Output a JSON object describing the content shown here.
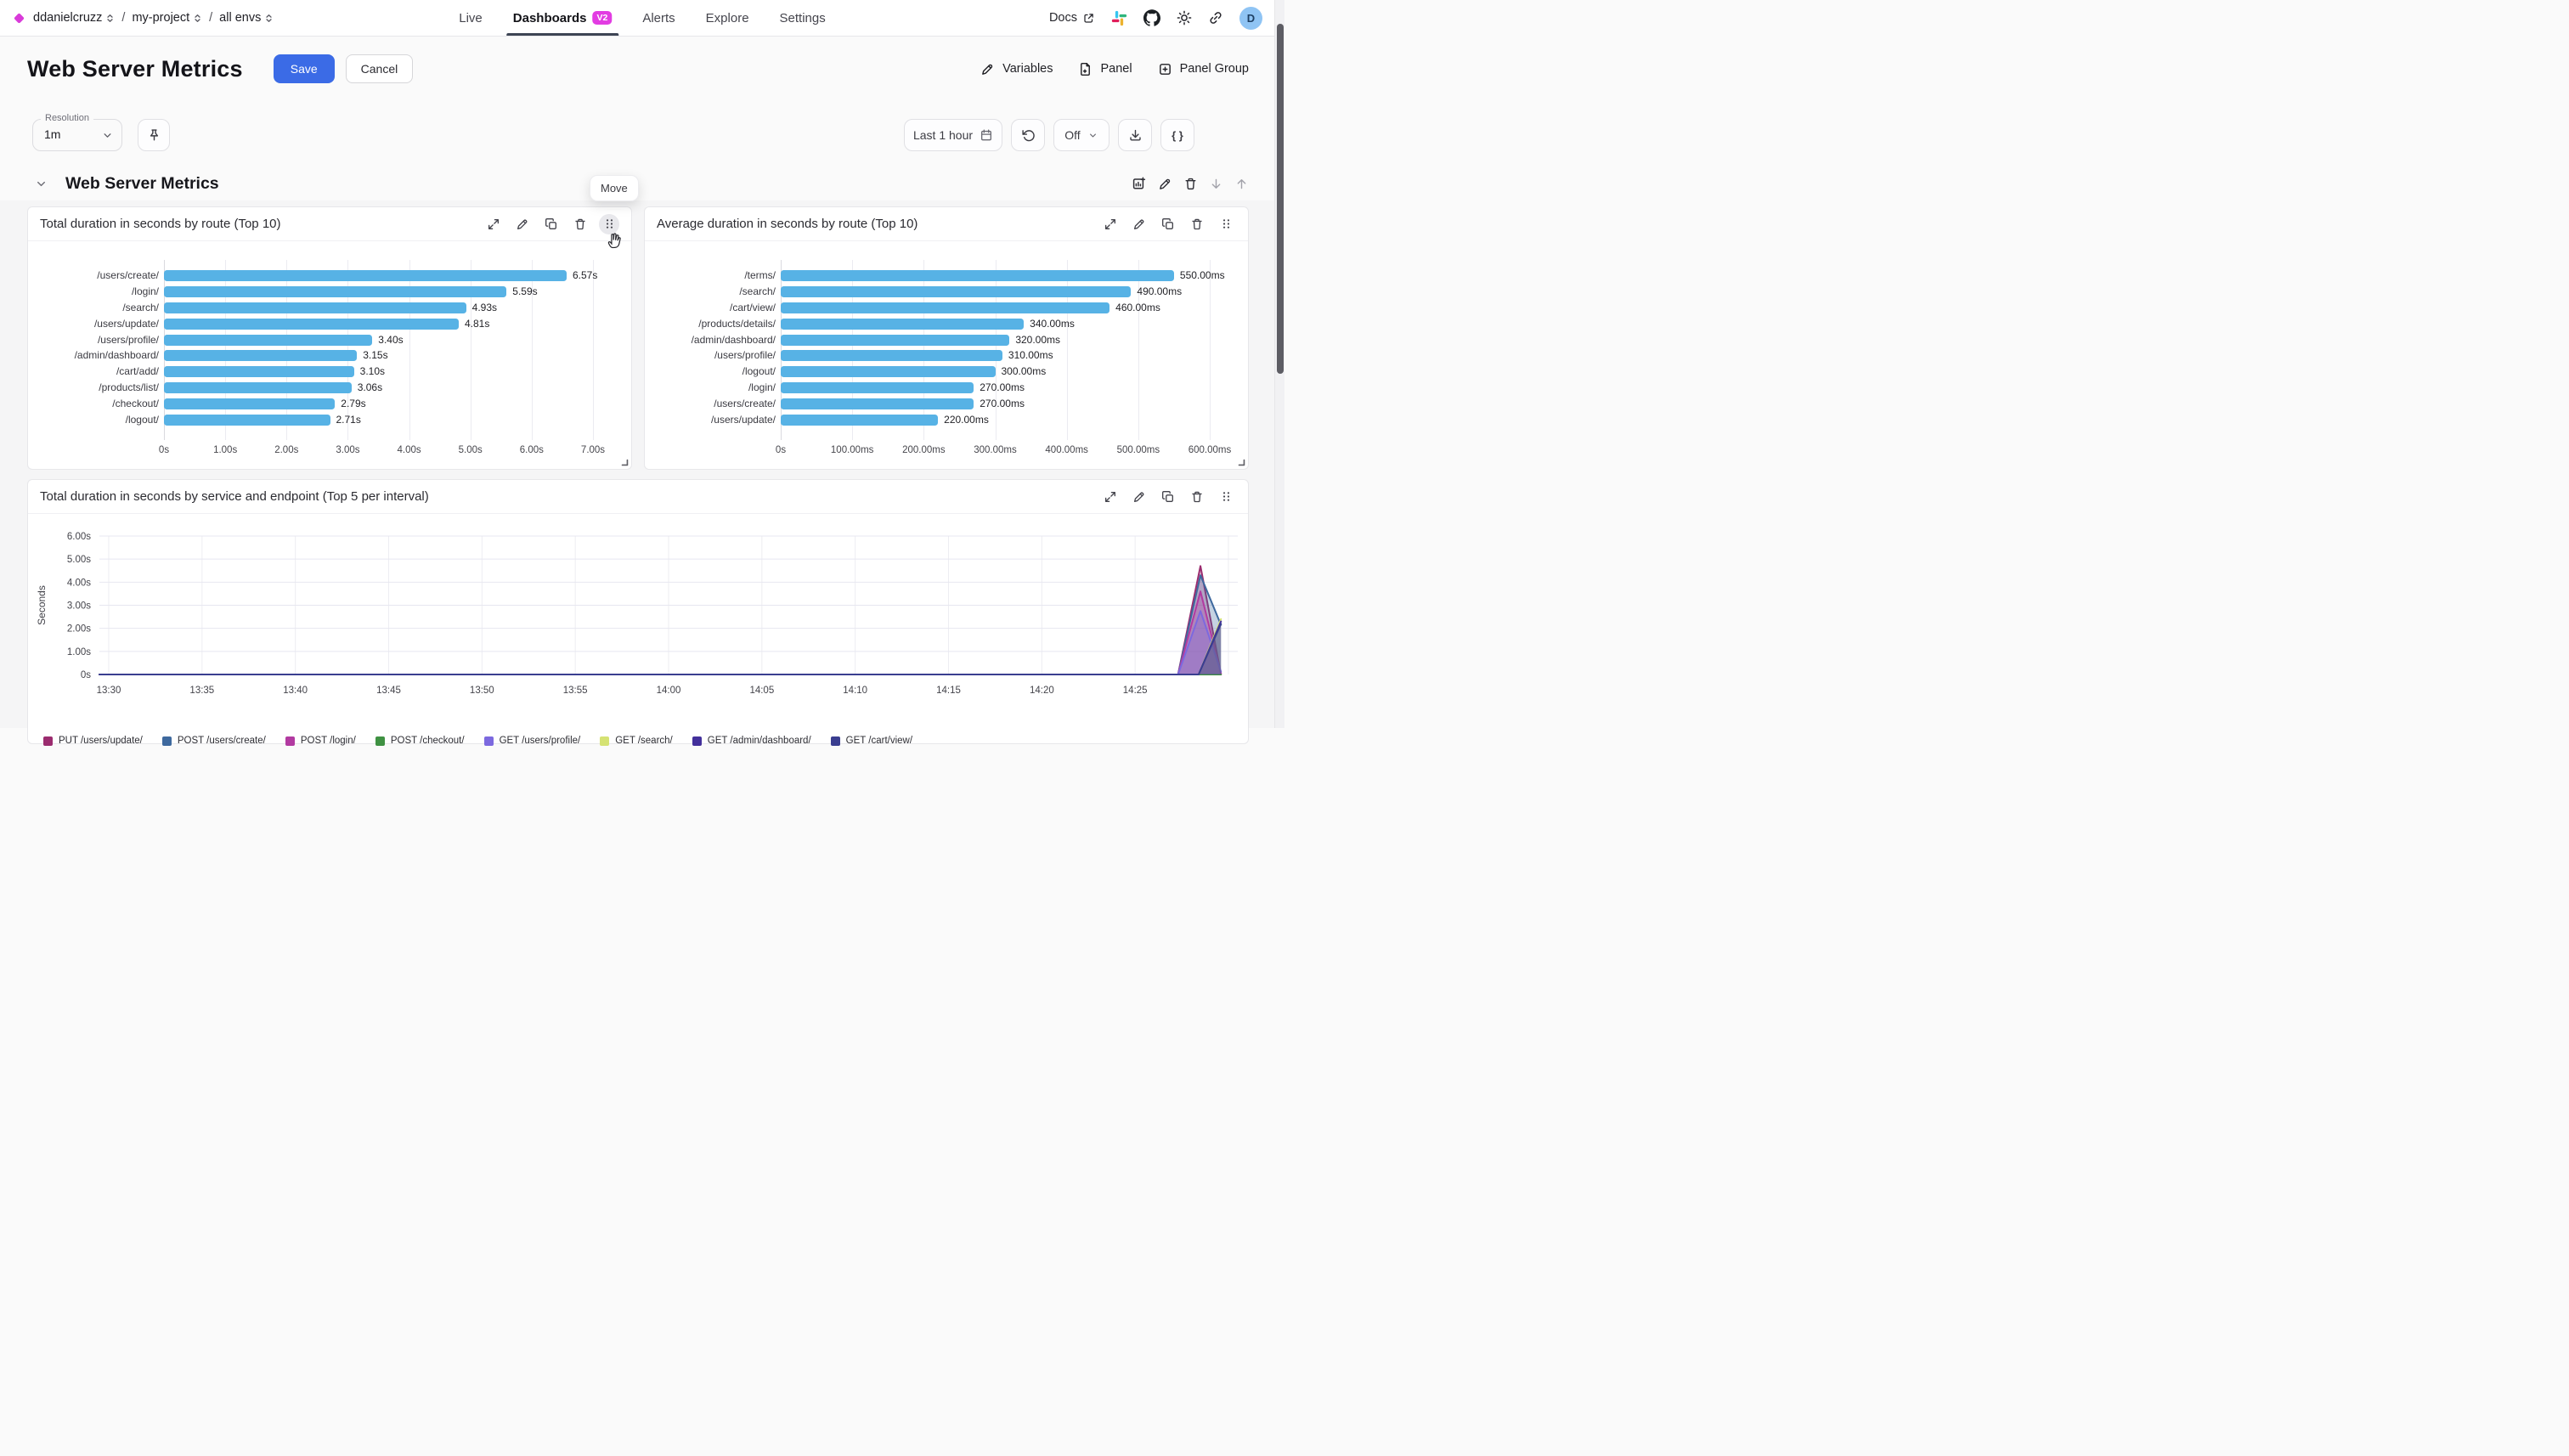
{
  "colors": {
    "accent_blue": "#3B6BE6",
    "bar_blue": "#57B2E5",
    "badge_magenta": "#E23CE2",
    "logo_magenta": "#D93BD9",
    "avatar_bg": "#8FC4F4",
    "nav_underline": "#3D4454"
  },
  "topbar": {
    "logo_icon": "diamond-logo-icon",
    "breadcrumb": [
      {
        "label": "ddanielcruzz",
        "icon": "selector-icon"
      },
      {
        "label": "my-project",
        "icon": "selector-icon"
      },
      {
        "label": "all envs",
        "icon": "selector-icon"
      }
    ],
    "separator": "/",
    "nav": [
      {
        "label": "Live",
        "active": false
      },
      {
        "label": "Dashboards",
        "active": true,
        "badge": "V2"
      },
      {
        "label": "Alerts",
        "active": false
      },
      {
        "label": "Explore",
        "active": false
      },
      {
        "label": "Settings",
        "active": false
      }
    ],
    "docs_label": "Docs",
    "icons": [
      "external-link-icon",
      "slack-icon",
      "github-icon",
      "brightness-icon",
      "link-icon"
    ],
    "avatar_initial": "D"
  },
  "header": {
    "title": "Web Server Metrics",
    "save_label": "Save",
    "cancel_label": "Cancel",
    "actions": [
      {
        "icon": "pencil-icon",
        "label": "Variables"
      },
      {
        "icon": "file-plus-icon",
        "label": "Panel"
      },
      {
        "icon": "square-plus-icon",
        "label": "Panel Group"
      }
    ]
  },
  "toolbar": {
    "resolution_label": "Resolution",
    "resolution_value": "1m",
    "pin_icon": "pin-icon",
    "time_range": "Last 1 hour",
    "calendar_icon": "calendar-icon",
    "refresh_icon": "rotate-ccw-icon",
    "auto_refresh_value": "Off",
    "download_icon": "download-icon",
    "braces_label": "{ }"
  },
  "section": {
    "title": "Web Server Metrics",
    "collapse_icon": "chevron-down-icon",
    "tooltip": "Move",
    "action_icons": [
      "add-panel-icon",
      "pencil-icon",
      "trash-icon",
      "arrow-down-icon",
      "arrow-up-icon"
    ]
  },
  "panel_action_icons": [
    "expand-icon",
    "pencil-icon",
    "copy-icon",
    "trash-icon",
    "drag-handle-icon"
  ],
  "chart_data": [
    {
      "type": "bar",
      "orientation": "horizontal",
      "title": "Total duration in seconds by route (Top 10)",
      "categories": [
        "/users/create/",
        "/login/",
        "/search/",
        "/users/update/",
        "/users/profile/",
        "/admin/dashboard/",
        "/cart/add/",
        "/products/list/",
        "/checkout/",
        "/logout/"
      ],
      "values": [
        6.57,
        5.59,
        4.93,
        4.81,
        3.4,
        3.15,
        3.1,
        3.06,
        2.79,
        2.71
      ],
      "value_labels": [
        "6.57s",
        "5.59s",
        "4.93s",
        "4.81s",
        "3.40s",
        "3.15s",
        "3.10s",
        "3.06s",
        "2.79s",
        "2.71s"
      ],
      "x_tick_values": [
        0,
        1,
        2,
        3,
        4,
        5,
        6,
        7
      ],
      "x_tick_labels": [
        "0s",
        "1.00s",
        "2.00s",
        "3.00s",
        "4.00s",
        "5.00s",
        "6.00s",
        "7.00s"
      ],
      "xlim": [
        0,
        7
      ],
      "bar_color": "#57B2E5",
      "grid": true
    },
    {
      "type": "bar",
      "orientation": "horizontal",
      "title": "Average duration in seconds by route (Top 10)",
      "categories": [
        "/terms/",
        "/search/",
        "/cart/view/",
        "/products/details/",
        "/admin/dashboard/",
        "/users/profile/",
        "/logout/",
        "/login/",
        "/users/create/",
        "/users/update/"
      ],
      "values": [
        550,
        490,
        460,
        340,
        320,
        310,
        300,
        270,
        270,
        220
      ],
      "value_labels": [
        "550.00ms",
        "490.00ms",
        "460.00ms",
        "340.00ms",
        "320.00ms",
        "310.00ms",
        "300.00ms",
        "270.00ms",
        "270.00ms",
        "220.00ms"
      ],
      "x_tick_values": [
        0,
        100,
        200,
        300,
        400,
        500,
        600
      ],
      "x_tick_labels": [
        "0s",
        "100.00ms",
        "200.00ms",
        "300.00ms",
        "400.00ms",
        "500.00ms",
        "600.00ms"
      ],
      "xlim": [
        0,
        600
      ],
      "bar_color": "#57B2E5",
      "grid": true
    },
    {
      "type": "area",
      "title": "Total duration in seconds by service and endpoint (Top 5 per interval)",
      "ylabel": "Seconds",
      "ylim": [
        0,
        6
      ],
      "y_tick_values": [
        0,
        1,
        2,
        3,
        4,
        5,
        6
      ],
      "y_tick_labels": [
        "0s",
        "1.00s",
        "2.00s",
        "3.00s",
        "4.00s",
        "5.00s",
        "6.00s"
      ],
      "x_domain_minutes": [
        -0.5,
        60.5
      ],
      "x_start_time": "13:30",
      "x_tick_minutes": [
        0,
        5,
        10,
        15,
        20,
        25,
        30,
        35,
        40,
        45,
        50,
        55
      ],
      "x_tick_labels": [
        "13:30",
        "13:35",
        "13:40",
        "13:45",
        "13:50",
        "13:55",
        "14:00",
        "14:05",
        "14:10",
        "14:15",
        "14:20",
        "14:25"
      ],
      "grid_minutes": [
        0,
        5,
        10,
        15,
        20,
        25,
        30,
        35,
        40,
        45,
        50,
        55,
        60
      ],
      "legend_position": "bottom",
      "series": [
        {
          "name": "PUT /users/update/",
          "color": "#9B2C6F",
          "points": [
            [
              -0.5,
              0
            ],
            [
              57.3,
              0
            ],
            [
              58.5,
              4.7
            ],
            [
              59.6,
              0
            ]
          ]
        },
        {
          "name": "POST /users/create/",
          "color": "#3E699E",
          "points": [
            [
              -0.5,
              0
            ],
            [
              57.3,
              0
            ],
            [
              58.5,
              4.3
            ],
            [
              59.6,
              2.15
            ]
          ]
        },
        {
          "name": "POST /login/",
          "color": "#B23AA1",
          "points": [
            [
              -0.5,
              0
            ],
            [
              57.3,
              0
            ],
            [
              58.5,
              3.6
            ],
            [
              59.6,
              0.05
            ]
          ]
        },
        {
          "name": "POST /checkout/",
          "color": "#3F9142",
          "points": [
            [
              -0.5,
              0
            ],
            [
              59.6,
              0
            ]
          ]
        },
        {
          "name": "GET /users/profile/",
          "color": "#7C69DF",
          "points": [
            [
              -0.5,
              0
            ],
            [
              57.3,
              0
            ],
            [
              58.5,
              2.75
            ],
            [
              59.6,
              0.12
            ]
          ]
        },
        {
          "name": "GET /search/",
          "color": "#D5E273",
          "points": [
            [
              -0.5,
              0
            ],
            [
              58.4,
              0
            ],
            [
              59.6,
              2.4
            ]
          ]
        },
        {
          "name": "GET /admin/dashboard/",
          "color": "#43309B",
          "points": [
            [
              -0.5,
              0
            ],
            [
              58.4,
              0
            ],
            [
              59.6,
              2.3
            ]
          ]
        },
        {
          "name": "GET /cart/view/",
          "color": "#3A3E90",
          "points": [
            [
              -0.5,
              0
            ],
            [
              58.4,
              0
            ],
            [
              59.6,
              2.2
            ]
          ]
        }
      ]
    }
  ]
}
